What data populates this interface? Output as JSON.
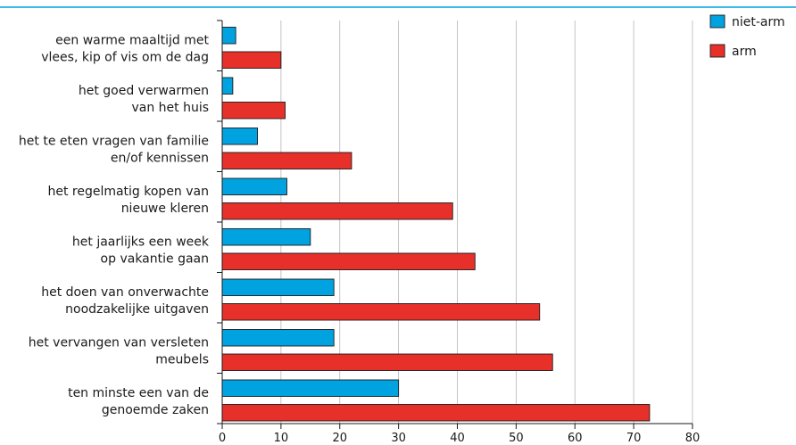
{
  "chart_data": {
    "type": "bar",
    "orientation": "horizontal",
    "categories": [
      [
        "een warme maaltijd met",
        "vlees, kip of vis om de dag"
      ],
      [
        "het goed verwarmen",
        "van het huis"
      ],
      [
        "het te eten vragen van familie",
        "en/of kennissen"
      ],
      [
        "het regelmatig kopen van",
        "nieuwe kleren"
      ],
      [
        "het jaarlijks een week",
        "op vakantie gaan"
      ],
      [
        "het doen van onverwachte",
        "noodzakelijke uitgaven"
      ],
      [
        "het vervangen van versleten",
        "meubels"
      ],
      [
        "ten minste een van de",
        "genoemde zaken"
      ]
    ],
    "series": [
      {
        "name": "niet-arm",
        "color": "#00a3e0",
        "values": [
          2.3,
          1.8,
          6,
          11,
          15,
          19,
          19,
          30
        ]
      },
      {
        "name": "arm",
        "color": "#e8302a",
        "values": [
          10,
          10.7,
          22,
          39.2,
          43,
          54,
          56.2,
          72.7
        ]
      }
    ],
    "xlim": [
      0,
      80
    ],
    "xticks": [
      "0",
      "10",
      "20",
      "30",
      "40",
      "50",
      "60",
      "70",
      "80"
    ],
    "grid": true,
    "legend_position": "top-right",
    "title": "",
    "xlabel": "",
    "ylabel": ""
  },
  "colors": {
    "top_rule": "#00a3e0",
    "grid": "#b5b5b5",
    "bar_outline": "#1a1a1a"
  }
}
